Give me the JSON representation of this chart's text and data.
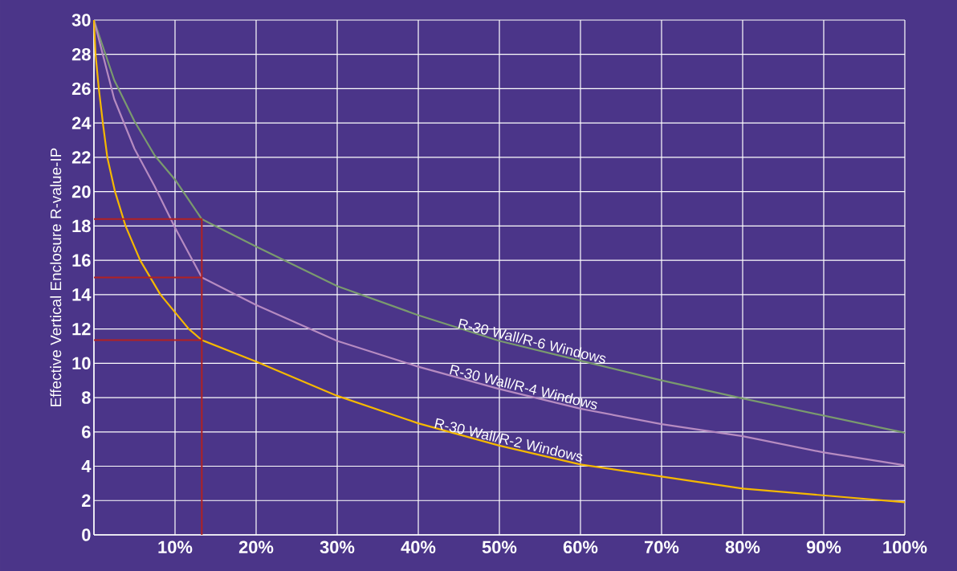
{
  "chart_data": {
    "type": "line",
    "ylabel": "Effective Vertical Enclosure R-value-IP",
    "xlim": [
      0,
      100
    ],
    "ylim": [
      0,
      30
    ],
    "xticks": [
      {
        "value": 0,
        "label": null
      },
      {
        "value": 10,
        "label": "10%"
      },
      {
        "value": 20,
        "label": "20%"
      },
      {
        "value": 30,
        "label": "30%"
      },
      {
        "value": 40,
        "label": "40%"
      },
      {
        "value": 50,
        "label": "50%"
      },
      {
        "value": 60,
        "label": "60%"
      },
      {
        "value": 70,
        "label": "70%"
      },
      {
        "value": 80,
        "label": "80%"
      },
      {
        "value": 90,
        "label": "90%"
      },
      {
        "value": 100,
        "label": "100%"
      }
    ],
    "yticks": [
      0,
      2,
      4,
      6,
      8,
      10,
      12,
      14,
      16,
      18,
      20,
      22,
      24,
      26,
      28,
      30
    ],
    "grid": true,
    "marker": "none",
    "line_style": "solid",
    "series": [
      {
        "name": "R-30 Wall/R-6 Windows",
        "color": "#7a9a6e",
        "x": [
          0,
          2.5,
          5,
          7.5,
          10,
          13.3,
          20,
          30,
          40,
          50,
          60,
          70,
          80,
          90,
          100
        ],
        "values": [
          30,
          26.5,
          24.1,
          22.1,
          20.7,
          18.4,
          16.8,
          14.5,
          12.8,
          11.3,
          10.15,
          9.0,
          7.95,
          6.95,
          5.95
        ]
      },
      {
        "name": "R-30 Wall/R-4 Windows",
        "color": "#b68bc1",
        "x": [
          0,
          2.5,
          5,
          7.5,
          10,
          13.3,
          20,
          30,
          40,
          50,
          60,
          70,
          80,
          90,
          100
        ],
        "values": [
          30,
          25.4,
          22.5,
          20.3,
          17.9,
          15.0,
          13.4,
          11.3,
          9.8,
          8.5,
          7.35,
          6.45,
          5.75,
          4.8,
          4.05
        ]
      },
      {
        "name": "R-30 Wall/R-2 Windows",
        "color": "#f5b800",
        "x": [
          0,
          0.2,
          0.6,
          1.1,
          1.65,
          2.6,
          3.9,
          5.7,
          8.2,
          11.7,
          13.3,
          20,
          30,
          40,
          50,
          60,
          70,
          80,
          90,
          100
        ],
        "values": [
          30,
          28,
          26,
          24,
          22,
          20,
          18,
          16,
          14,
          12,
          11.35,
          10.1,
          8.1,
          6.5,
          5.2,
          4.1,
          3.4,
          2.7,
          2.3,
          1.9
        ]
      },
      {
        "color": "#b22222",
        "x": [
          0,
          13.3,
          13.3
        ],
        "values": [
          18.4,
          18.4,
          0
        ]
      },
      {
        "color": "#b22222",
        "x": [
          0,
          13.3
        ],
        "values": [
          15.0,
          15.0
        ]
      },
      {
        "color": "#b22222",
        "x": [
          0,
          13.3
        ],
        "values": [
          11.35,
          11.35
        ]
      }
    ]
  }
}
